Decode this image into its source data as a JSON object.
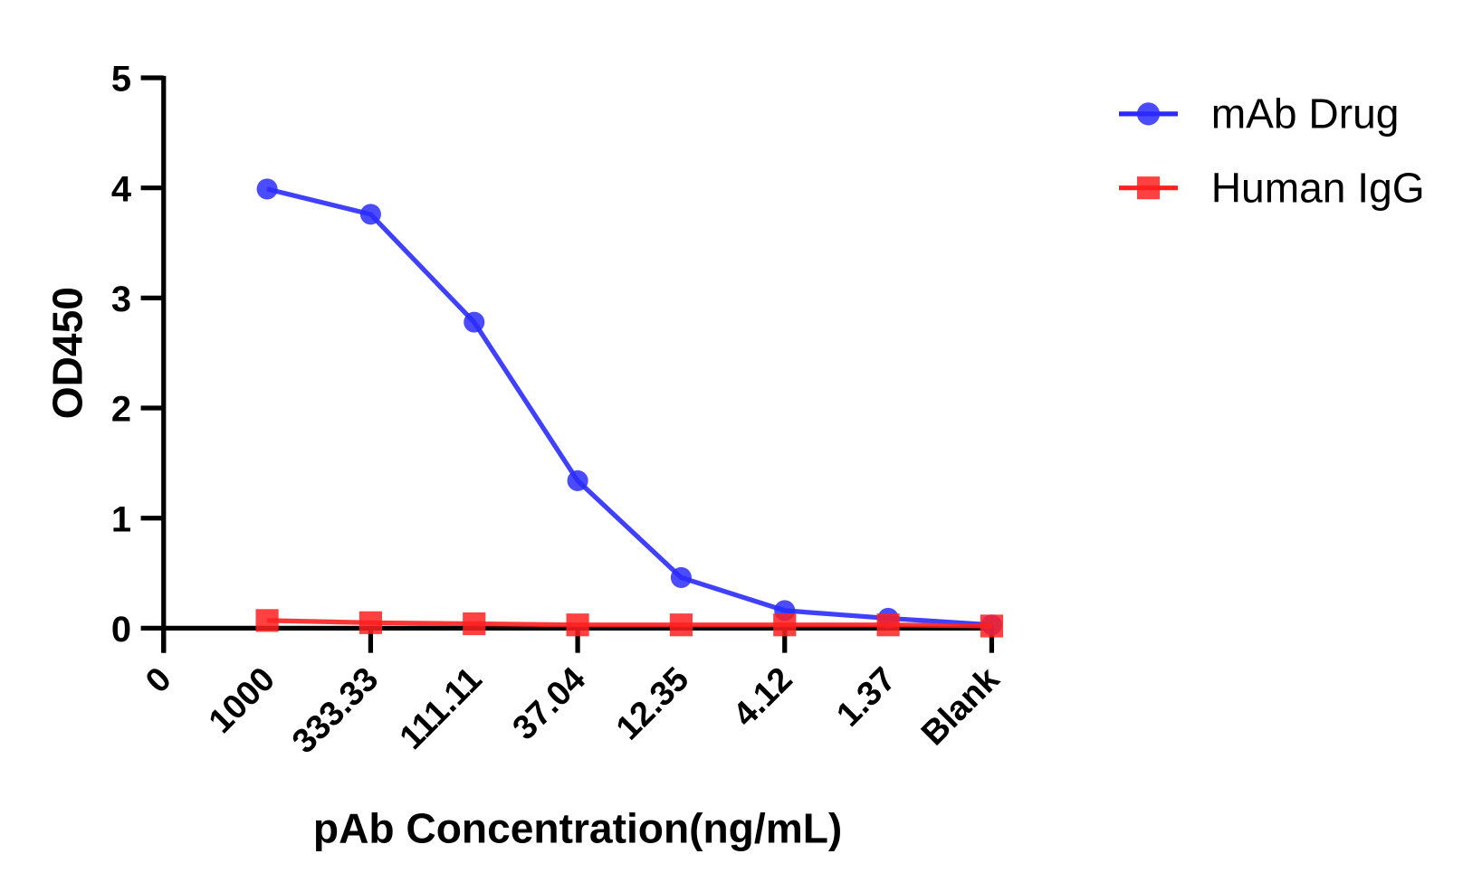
{
  "chart_data": {
    "type": "line",
    "title": "",
    "xlabel": "pAb Concentration(ng/mL)",
    "ylabel": "OD450",
    "categories": [
      "0",
      "1000",
      "333.33",
      "111.11",
      "37.04",
      "12.35",
      "4.12",
      "1.37",
      "Blank"
    ],
    "ylim": [
      0,
      5
    ],
    "yticks": [
      "0",
      "1",
      "2",
      "3",
      "4",
      "5"
    ],
    "grid": false,
    "legend_position": "top-right",
    "series": [
      {
        "name": "mAb Drug",
        "marker": "circle",
        "color": "#2b2bff",
        "values": [
          null,
          3.99,
          3.76,
          2.78,
          1.34,
          0.46,
          0.16,
          0.09,
          0.03
        ]
      },
      {
        "name": "Human IgG",
        "marker": "square",
        "color": "#ff2020",
        "values": [
          null,
          0.07,
          0.05,
          0.04,
          0.03,
          0.03,
          0.03,
          0.03,
          0.02
        ]
      }
    ]
  }
}
